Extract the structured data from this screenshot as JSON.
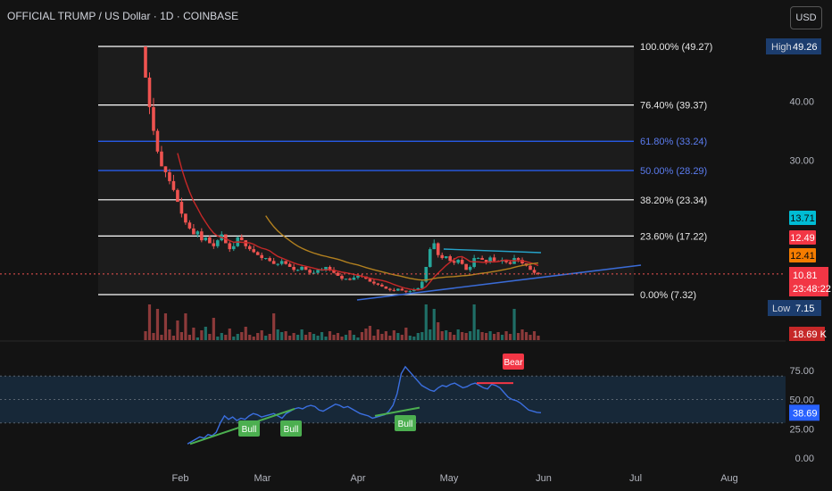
{
  "header": {
    "title": "OFFICIAL TRUMP / US Dollar · 1D · COINBASE",
    "currency_button": "USD"
  },
  "colors": {
    "background": "#131313",
    "up": "#26a69a",
    "down": "#ef5350",
    "fib_white": "#ffffff",
    "fib_blue": "#2962ff",
    "trendline": "#3a6bd6",
    "ma_red": "#c62828",
    "ma_orange": "#b2801f",
    "rsi_line": "#3b6fe0",
    "bull": "#4caf50",
    "bear": "#f23645"
  },
  "chart_data": [
    {
      "type": "candlestick",
      "title": "OFFICIAL TRUMP / US Dollar · 1D · COINBASE",
      "x_tick_labels": [
        "Feb",
        "Mar",
        "Apr",
        "May",
        "Jun",
        "Jul",
        "Aug"
      ],
      "y_tick_labels": [
        "40.00",
        "30.00"
      ],
      "price_labels": [
        {
          "name": "high",
          "tag": "High",
          "value": "49.26"
        },
        {
          "name": "low",
          "tag": "Low",
          "value": "7.15"
        },
        {
          "name": "ma-fast",
          "value": "13.71"
        },
        {
          "name": "ma-mid",
          "value": "12.49"
        },
        {
          "name": "ma-slow",
          "value": "12.41"
        },
        {
          "name": "last-price",
          "value": "10.81",
          "sub": "23:48:22"
        },
        {
          "name": "volume",
          "value": "18.69 K"
        }
      ],
      "fib_levels": [
        {
          "label": "100.00% (49.27)",
          "value": 49.27,
          "color": "white"
        },
        {
          "label": "76.40% (39.37)",
          "value": 39.37,
          "color": "white"
        },
        {
          "label": "61.80% (33.24)",
          "value": 33.24,
          "color": "blue"
        },
        {
          "label": "50.00% (28.29)",
          "value": 28.29,
          "color": "blue"
        },
        {
          "label": "38.20% (23.34)",
          "value": 23.34,
          "color": "white"
        },
        {
          "label": "23.60% (17.22)",
          "value": 17.22,
          "color": "white"
        },
        {
          "label": "0.00% (7.32)",
          "value": 7.32,
          "color": "white"
        }
      ],
      "close_series": [
        44,
        39,
        35,
        31.5,
        29,
        28,
        26.5,
        25,
        23,
        21,
        19.5,
        18.5,
        17.5,
        18,
        16.5,
        17,
        16,
        15.5,
        16.5,
        17.5,
        16,
        15,
        15.5,
        17,
        16.5,
        15.5,
        15,
        14.5,
        14,
        13.5,
        13.5,
        13,
        12.5,
        12.5,
        13,
        12.5,
        12,
        11.5,
        11.5,
        12,
        11.5,
        11,
        11,
        11.5,
        11.5,
        12,
        11.5,
        11,
        10.5,
        10,
        10,
        9.8,
        10.2,
        10.5,
        10.4,
        10,
        9.5,
        9.2,
        9,
        8.7,
        8.3,
        8.1,
        8,
        8.3,
        8,
        7.8,
        7.9,
        8.1,
        8.4,
        9.5,
        12,
        15,
        16,
        14,
        13.5,
        13.8,
        13,
        12.7,
        13.2,
        12.5,
        11.5,
        12,
        13.5,
        13.5,
        13.2,
        12.8,
        13.6,
        13,
        12.9,
        13.2,
        12.8,
        12.5,
        13.5,
        13.2,
        12.6,
        12.2,
        11.5,
        11,
        10.81
      ]
    },
    {
      "type": "line",
      "title": "RSI",
      "y_tick_labels": [
        "75.00",
        "50.00",
        "25.00",
        "0.00"
      ],
      "ylim": [
        0,
        100
      ],
      "bands": {
        "upper": 70,
        "middle": 50,
        "lower": 30
      },
      "current_value_label": "38.69",
      "rsi_values": [
        12,
        14,
        16,
        18,
        17,
        20,
        19,
        22,
        30,
        36,
        33,
        35,
        32,
        34,
        33,
        36,
        38,
        37,
        35,
        36,
        37,
        38,
        36,
        34,
        38,
        40,
        42,
        43,
        42,
        44,
        45,
        44,
        41,
        40,
        42,
        44,
        46,
        45,
        43,
        44,
        42,
        40,
        38,
        37,
        36,
        34,
        35,
        36,
        37,
        40,
        45,
        55,
        72,
        78,
        74,
        70,
        66,
        62,
        60,
        58,
        57,
        60,
        62,
        61,
        63,
        64,
        62,
        60,
        61,
        63,
        64,
        62,
        60,
        59,
        63,
        62,
        60,
        56,
        52,
        50,
        49,
        47,
        44,
        41,
        40,
        39,
        38.69
      ],
      "signals": [
        {
          "label": "Bull",
          "type": "bull"
        },
        {
          "label": "Bull",
          "type": "bull"
        },
        {
          "label": "Bull",
          "type": "bull"
        },
        {
          "label": "Bear",
          "type": "bear"
        }
      ]
    }
  ]
}
